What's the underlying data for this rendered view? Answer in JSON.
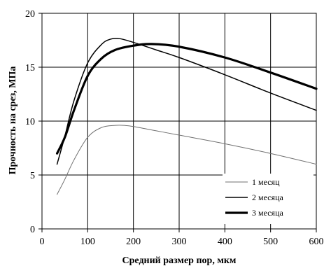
{
  "chart_data": {
    "type": "line",
    "xlabel": "Средний размер пор, мкм",
    "ylabel": "Прочность на срез, МПа",
    "xlim": [
      0,
      600
    ],
    "ylim": [
      0,
      20
    ],
    "xticks": [
      0,
      100,
      200,
      300,
      400,
      500,
      600
    ],
    "yticks": [
      0,
      5,
      10,
      15,
      20
    ],
    "grid": true,
    "legend": "bottom-right",
    "series": [
      {
        "name": "1 месяц",
        "stroke": "#707070",
        "x": [
          33,
          50,
          70,
          100,
          130,
          160,
          180,
          200,
          250,
          300,
          400,
          500,
          600
        ],
        "y": [
          3.2,
          4.6,
          6.4,
          8.5,
          9.4,
          9.6,
          9.6,
          9.5,
          9.1,
          8.7,
          7.9,
          7.0,
          6.0
        ]
      },
      {
        "name": "2 месяца",
        "stroke": "#000000",
        "x": [
          33,
          50,
          70,
          100,
          130,
          150,
          170,
          200,
          250,
          300,
          400,
          500,
          600
        ],
        "y": [
          6.0,
          8.6,
          11.9,
          15.4,
          17.1,
          17.6,
          17.65,
          17.3,
          16.6,
          15.9,
          14.3,
          12.6,
          11.0
        ],
        "stroke_width": 1.5
      },
      {
        "name": "3 месяца",
        "stroke": "#000000",
        "x": [
          33,
          50,
          70,
          100,
          130,
          160,
          200,
          240,
          300,
          400,
          500,
          600
        ],
        "y": [
          7.0,
          8.5,
          11.0,
          14.2,
          15.8,
          16.6,
          17.0,
          17.15,
          16.9,
          15.9,
          14.5,
          13.0
        ],
        "stroke_width": 3.2
      }
    ]
  }
}
